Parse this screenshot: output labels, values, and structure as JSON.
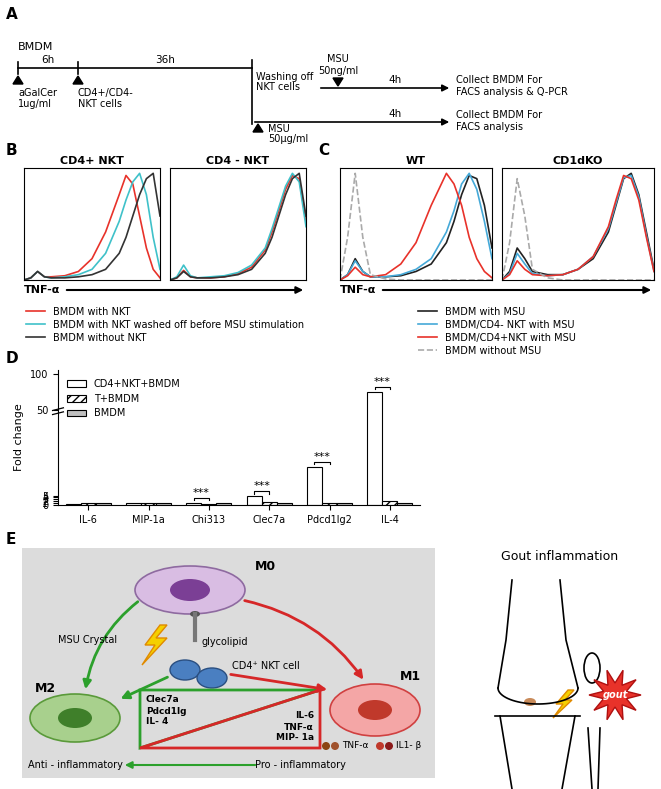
{
  "panel_labels": [
    "A",
    "B",
    "C",
    "D",
    "E"
  ],
  "timeline": {
    "start": "BMDM",
    "step1": "6h",
    "step2": "36h",
    "agalcer": "aGalCer",
    "agalcer_dose": "1ug/ml",
    "nkt": "CD4+/CD4-",
    "nkt2": "NKT cells",
    "wash": "Washing off",
    "wash2": "NKT cells",
    "msu_top": "MSU",
    "msu_top_dose": "50ng/ml",
    "time_top": "4h",
    "collect_top": "Collect BMDM For",
    "collect_top2": "FACS analysis & Q-PCR",
    "msu_bottom": "MSU",
    "msu_bottom_dose": "50μg/ml",
    "time_bottom": "4h",
    "collect_bottom": "Collect BMDM For",
    "collect_bottom2": "FACS analysis"
  },
  "chart_data": [
    {
      "type": "line",
      "title": "CD4+ NKT",
      "xlabel": "TNF-α",
      "tick_labels": false,
      "legend": "lower center",
      "x": [
        0,
        5,
        10,
        15,
        20,
        30,
        40,
        50,
        60,
        70,
        75,
        80,
        85,
        90,
        95,
        100
      ],
      "xlim": [
        0,
        100
      ],
      "ylim": [
        0,
        105
      ],
      "series": [
        {
          "name": "BMDM with NKT",
          "color": "#e8322a",
          "values": [
            0,
            2,
            8,
            3,
            3,
            4,
            8,
            20,
            45,
            80,
            98,
            90,
            60,
            30,
            10,
            2
          ]
        },
        {
          "name": "BMDM with NKT washed off before MSU stimulation",
          "color": "#3fc1c9",
          "values": [
            0,
            2,
            8,
            3,
            2,
            3,
            5,
            10,
            25,
            55,
            75,
            92,
            100,
            80,
            40,
            10
          ]
        },
        {
          "name": "BMDM without NKT",
          "color": "#333333",
          "values": [
            0,
            2,
            8,
            3,
            2,
            2,
            3,
            5,
            10,
            25,
            40,
            60,
            80,
            95,
            100,
            60
          ]
        }
      ]
    },
    {
      "type": "line",
      "title": "CD4 - NKT",
      "tick_labels": false,
      "x": [
        0,
        5,
        10,
        15,
        20,
        30,
        40,
        50,
        60,
        70,
        75,
        80,
        85,
        90,
        95,
        100
      ],
      "xlim": [
        0,
        100
      ],
      "ylim": [
        0,
        105
      ],
      "series": [
        {
          "name": "BMDM with NKT",
          "color": "#e8322a",
          "values": [
            0,
            2,
            9,
            3,
            2,
            2,
            3,
            6,
            12,
            28,
            45,
            65,
            85,
            98,
            95,
            55
          ]
        },
        {
          "name": "BMDM with NKT washed off before MSU stimulation",
          "color": "#3fc1c9",
          "values": [
            0,
            3,
            14,
            4,
            2,
            3,
            4,
            7,
            14,
            30,
            48,
            68,
            88,
            100,
            92,
            50
          ]
        },
        {
          "name": "BMDM without NKT",
          "color": "#333333",
          "values": [
            0,
            2,
            8,
            3,
            2,
            2,
            3,
            5,
            10,
            25,
            40,
            60,
            80,
            95,
            100,
            60
          ]
        }
      ]
    },
    {
      "type": "line",
      "title": "WT",
      "xlabel": "TNF-α",
      "tick_labels": false,
      "legend": "lower center",
      "x": [
        0,
        5,
        10,
        15,
        20,
        30,
        40,
        50,
        60,
        70,
        75,
        80,
        85,
        90,
        95,
        100
      ],
      "xlim": [
        0,
        100
      ],
      "ylim": [
        0,
        105
      ],
      "series": [
        {
          "name": "BMDM with MSU",
          "color": "#222222",
          "values": [
            0,
            5,
            20,
            8,
            3,
            3,
            4,
            8,
            15,
            35,
            55,
            80,
            98,
            95,
            70,
            30
          ]
        },
        {
          "name": "BMDM/CD4- NKT with MSU",
          "color": "#45a9d8",
          "values": [
            0,
            5,
            18,
            8,
            3,
            3,
            5,
            10,
            20,
            45,
            65,
            90,
            100,
            85,
            55,
            20
          ]
        },
        {
          "name": "BMDM/CD4+NKT with MSU",
          "color": "#e8322a",
          "values": [
            0,
            4,
            12,
            5,
            3,
            5,
            15,
            35,
            70,
            100,
            90,
            70,
            40,
            20,
            8,
            2
          ]
        },
        {
          "name": "BMDM without MSU",
          "color": "#aaaaaa",
          "line_style": "dashed",
          "values": [
            0,
            40,
            100,
            40,
            5,
            1,
            0,
            0,
            0,
            0,
            0,
            0,
            0,
            0,
            0,
            0
          ]
        }
      ]
    },
    {
      "type": "line",
      "title": "CD1dKO",
      "tick_labels": false,
      "x": [
        0,
        5,
        10,
        15,
        20,
        30,
        40,
        50,
        60,
        70,
        75,
        80,
        85,
        90,
        95,
        100
      ],
      "xlim": [
        0,
        100
      ],
      "ylim": [
        0,
        105
      ],
      "series": [
        {
          "name": "BMDM with MSU",
          "color": "#222222",
          "values": [
            0,
            8,
            30,
            20,
            8,
            5,
            5,
            10,
            20,
            45,
            70,
            95,
            100,
            80,
            45,
            10
          ]
        },
        {
          "name": "BMDM/CD4- NKT with MSU",
          "color": "#45a9d8",
          "values": [
            0,
            6,
            25,
            15,
            6,
            4,
            5,
            10,
            22,
            48,
            72,
            96,
            98,
            78,
            42,
            8
          ]
        },
        {
          "name": "BMDM/CD4+NKT with MSU",
          "color": "#e8322a",
          "values": [
            0,
            5,
            18,
            10,
            5,
            4,
            5,
            10,
            22,
            50,
            75,
            98,
            95,
            75,
            40,
            8
          ]
        },
        {
          "name": "BMDM without MSU",
          "color": "#aaaaaa",
          "line_style": "dashed",
          "values": [
            0,
            35,
            95,
            60,
            10,
            2,
            0,
            0,
            0,
            0,
            0,
            0,
            0,
            0,
            0,
            0
          ]
        }
      ]
    },
    {
      "type": "bar",
      "ylabel": "Fold change",
      "legend": "upper left",
      "categories": [
        "IL-6",
        "MIP-1a",
        "Chi313",
        "Clec7a",
        "Pdcd1lg2",
        "IL-4"
      ],
      "ylim": [
        0,
        105
      ],
      "yticks": [
        0,
        1,
        2,
        3,
        4,
        5,
        50,
        100
      ],
      "series": [
        {
          "name": "CD4+NKT+BMDM",
          "color": "#ffffff",
          "values": [
            0.5,
            1.0,
            1.1,
            4.5,
            20,
            75
          ]
        },
        {
          "name": "T+BMDM",
          "color": "#ffffff",
          "values": [
            0.9,
            1.2,
            0.3,
            1.4,
            1.1,
            2.0
          ]
        },
        {
          "name": "BMDM",
          "color": "#bfbfbf",
          "values": [
            1.0,
            1.0,
            1.0,
            1.0,
            1.0,
            1.0
          ]
        }
      ],
      "annotations": [
        {
          "category": "Chi313",
          "text": "***"
        },
        {
          "category": "Clec7a",
          "text": "***"
        },
        {
          "category": "Pdcd1lg2",
          "text": "***"
        },
        {
          "category": "IL-4",
          "text": "***"
        }
      ]
    }
  ],
  "diagram": {
    "m0": "M0",
    "msu": "MSU Crystal",
    "glycolipid": "glycolipid",
    "nkt": "CD4⁺ NKT cell",
    "m2": "M2",
    "m1": "M1",
    "m2_markers": [
      "Clec7a",
      "Pdcd1lg",
      "IL- 4"
    ],
    "m1_markers": [
      "IL-6",
      "TNF-α",
      "MIP- 1a"
    ],
    "anti": "Anti - inflammatory",
    "pro": "Pro - inflammatory",
    "cytokines": [
      "TNF-α",
      "IL1- β"
    ],
    "title": "Gout inflammation",
    "burst": "gout"
  }
}
